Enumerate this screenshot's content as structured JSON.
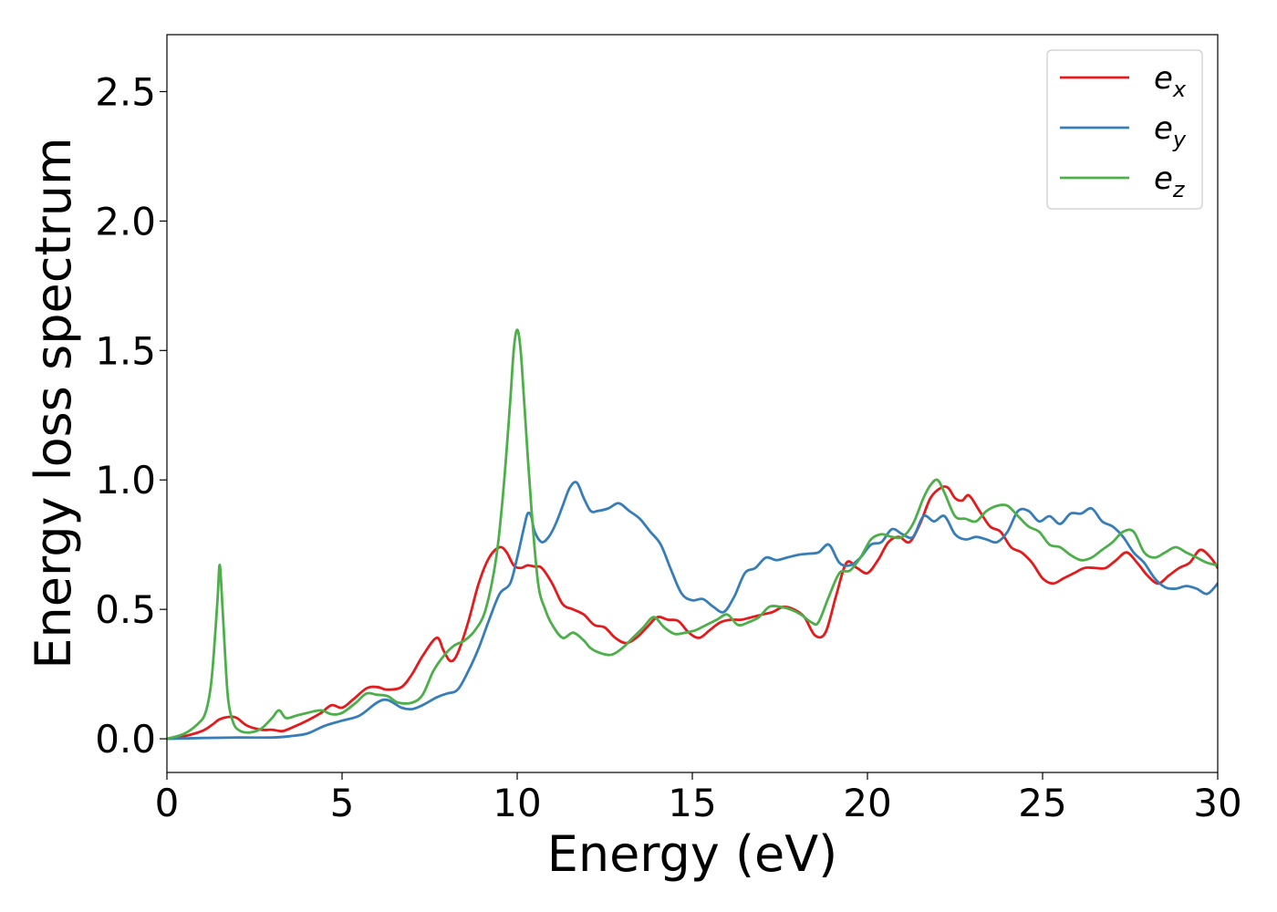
{
  "chart_data": {
    "type": "line",
    "xlabel": "Energy (eV)",
    "ylabel": "Energy loss spectrum",
    "xlim": [
      0,
      30
    ],
    "ylim": [
      -0.13,
      2.72
    ],
    "xticks": [
      0,
      5,
      10,
      15,
      20,
      25,
      30
    ],
    "xtick_labels": [
      "0",
      "5",
      "10",
      "15",
      "20",
      "25",
      "30"
    ],
    "yticks": [
      0.0,
      0.5,
      1.0,
      1.5,
      2.0,
      2.5
    ],
    "ytick_labels": [
      "0.0",
      "0.5",
      "1.0",
      "1.5",
      "2.0",
      "2.5"
    ],
    "grid": false,
    "legend_position": "top-right",
    "series": [
      {
        "name": "e_x",
        "label_base": "e",
        "label_sub": "x",
        "color": "#e41a1c",
        "x": [
          0,
          0.5,
          1,
          1.3,
          1.5,
          1.8,
          2,
          2.3,
          2.7,
          3,
          3.3,
          3.6,
          4,
          4.4,
          4.7,
          5,
          5.3,
          5.7,
          6,
          6.3,
          6.7,
          7,
          7.3,
          7.7,
          7.9,
          8.1,
          8.3,
          8.6,
          8.9,
          9.2,
          9.5,
          9.7,
          9.9,
          10.1,
          10.3,
          10.5,
          10.7,
          11,
          11.3,
          11.6,
          11.9,
          12.2,
          12.5,
          12.8,
          13.1,
          13.4,
          13.7,
          14,
          14.3,
          14.6,
          14.9,
          15.2,
          15.5,
          15.8,
          16.1,
          16.4,
          16.7,
          17,
          17.3,
          17.6,
          17.9,
          18.2,
          18.5,
          18.8,
          19.1,
          19.4,
          19.7,
          20,
          20.3,
          20.6,
          20.9,
          21.2,
          21.5,
          21.8,
          22.1,
          22.3,
          22.5,
          22.7,
          22.9,
          23.2,
          23.5,
          23.8,
          24.1,
          24.4,
          24.7,
          25,
          25.3,
          25.6,
          25.9,
          26.2,
          26.5,
          26.8,
          27.1,
          27.4,
          27.7,
          28,
          28.3,
          28.6,
          28.9,
          29.2,
          29.5,
          29.8,
          30
        ],
        "y": [
          0.0,
          0.01,
          0.03,
          0.055,
          0.075,
          0.085,
          0.08,
          0.05,
          0.035,
          0.035,
          0.03,
          0.045,
          0.07,
          0.1,
          0.13,
          0.12,
          0.15,
          0.195,
          0.2,
          0.19,
          0.2,
          0.25,
          0.32,
          0.39,
          0.34,
          0.3,
          0.33,
          0.45,
          0.6,
          0.7,
          0.74,
          0.72,
          0.67,
          0.66,
          0.67,
          0.665,
          0.66,
          0.6,
          0.52,
          0.5,
          0.48,
          0.44,
          0.43,
          0.39,
          0.37,
          0.39,
          0.43,
          0.47,
          0.46,
          0.455,
          0.41,
          0.39,
          0.42,
          0.45,
          0.46,
          0.46,
          0.47,
          0.48,
          0.49,
          0.51,
          0.5,
          0.47,
          0.4,
          0.41,
          0.55,
          0.68,
          0.66,
          0.64,
          0.69,
          0.76,
          0.78,
          0.76,
          0.83,
          0.93,
          0.97,
          0.97,
          0.93,
          0.92,
          0.94,
          0.88,
          0.82,
          0.8,
          0.74,
          0.72,
          0.68,
          0.62,
          0.6,
          0.62,
          0.64,
          0.66,
          0.66,
          0.66,
          0.69,
          0.72,
          0.68,
          0.63,
          0.6,
          0.63,
          0.66,
          0.68,
          0.73,
          0.7,
          0.66
        ]
      },
      {
        "name": "e_y",
        "label_base": "e",
        "label_sub": "y",
        "color": "#377eb8",
        "x": [
          0,
          1,
          2,
          3,
          3.5,
          4,
          4.5,
          5,
          5.5,
          6,
          6.3,
          6.7,
          7,
          7.3,
          7.7,
          8,
          8.3,
          8.6,
          8.9,
          9.2,
          9.5,
          9.8,
          10,
          10.2,
          10.3,
          10.4,
          10.5,
          10.7,
          10.9,
          11.1,
          11.3,
          11.5,
          11.7,
          11.9,
          12.1,
          12.3,
          12.6,
          12.9,
          13.2,
          13.5,
          13.8,
          14.1,
          14.4,
          14.7,
          15,
          15.3,
          15.6,
          15.9,
          16.2,
          16.5,
          16.8,
          17.1,
          17.4,
          17.7,
          18,
          18.3,
          18.6,
          18.9,
          19.2,
          19.5,
          19.8,
          20.1,
          20.4,
          20.7,
          21,
          21.3,
          21.6,
          21.9,
          22.2,
          22.5,
          22.8,
          23.1,
          23.4,
          23.7,
          24,
          24.3,
          24.6,
          24.9,
          25.2,
          25.5,
          25.8,
          26.1,
          26.4,
          26.7,
          27,
          27.3,
          27.6,
          27.9,
          28.2,
          28.5,
          28.8,
          29.1,
          29.4,
          29.7,
          30
        ],
        "y": [
          0.0,
          0.003,
          0.005,
          0.005,
          0.01,
          0.02,
          0.05,
          0.07,
          0.09,
          0.14,
          0.15,
          0.12,
          0.115,
          0.13,
          0.16,
          0.175,
          0.19,
          0.26,
          0.35,
          0.46,
          0.56,
          0.6,
          0.7,
          0.82,
          0.87,
          0.86,
          0.8,
          0.76,
          0.78,
          0.83,
          0.9,
          0.97,
          0.99,
          0.93,
          0.88,
          0.88,
          0.89,
          0.91,
          0.88,
          0.85,
          0.8,
          0.75,
          0.65,
          0.56,
          0.535,
          0.54,
          0.51,
          0.49,
          0.55,
          0.64,
          0.66,
          0.7,
          0.69,
          0.7,
          0.71,
          0.715,
          0.72,
          0.75,
          0.68,
          0.67,
          0.7,
          0.75,
          0.76,
          0.81,
          0.79,
          0.78,
          0.86,
          0.84,
          0.86,
          0.79,
          0.77,
          0.78,
          0.77,
          0.76,
          0.8,
          0.88,
          0.88,
          0.84,
          0.86,
          0.83,
          0.87,
          0.87,
          0.89,
          0.84,
          0.82,
          0.78,
          0.72,
          0.68,
          0.62,
          0.585,
          0.58,
          0.59,
          0.58,
          0.56,
          0.6
        ]
      },
      {
        "name": "e_z",
        "label_base": "e",
        "label_sub": "z",
        "color": "#4daf4a",
        "x": [
          0,
          0.5,
          0.9,
          1.1,
          1.25,
          1.35,
          1.45,
          1.5,
          1.55,
          1.65,
          1.75,
          1.9,
          2.1,
          2.4,
          2.7,
          3,
          3.2,
          3.4,
          3.7,
          4,
          4.4,
          4.7,
          5,
          5.4,
          5.7,
          6,
          6.3,
          6.6,
          7,
          7.3,
          7.6,
          7.9,
          8.2,
          8.5,
          8.8,
          9.1,
          9.4,
          9.6,
          9.8,
          9.9,
          10,
          10.1,
          10.2,
          10.4,
          10.6,
          10.8,
          11,
          11.3,
          11.6,
          11.9,
          12.1,
          12.4,
          12.7,
          13,
          13.3,
          13.6,
          13.9,
          14.2,
          14.5,
          14.8,
          15.1,
          15.4,
          15.7,
          16,
          16.3,
          16.6,
          16.9,
          17.2,
          17.5,
          17.8,
          18.1,
          18.4,
          18.6,
          18.9,
          19.2,
          19.5,
          19.8,
          20.1,
          20.4,
          20.7,
          21,
          21.3,
          21.6,
          21.8,
          22,
          22.2,
          22.5,
          22.8,
          23.1,
          23.4,
          23.7,
          24,
          24.3,
          24.6,
          24.9,
          25.2,
          25.5,
          25.8,
          26.1,
          26.4,
          26.7,
          27,
          27.3,
          27.6,
          27.9,
          28.2,
          28.5,
          28.8,
          29.1,
          29.4,
          29.7,
          30
        ],
        "y": [
          0.0,
          0.02,
          0.06,
          0.1,
          0.2,
          0.35,
          0.55,
          0.67,
          0.6,
          0.35,
          0.15,
          0.06,
          0.03,
          0.025,
          0.04,
          0.08,
          0.11,
          0.08,
          0.09,
          0.1,
          0.11,
          0.095,
          0.1,
          0.14,
          0.175,
          0.17,
          0.165,
          0.14,
          0.14,
          0.17,
          0.26,
          0.32,
          0.36,
          0.38,
          0.42,
          0.5,
          0.7,
          0.95,
          1.3,
          1.5,
          1.58,
          1.5,
          1.3,
          0.9,
          0.6,
          0.5,
          0.44,
          0.39,
          0.41,
          0.38,
          0.35,
          0.33,
          0.325,
          0.35,
          0.39,
          0.43,
          0.47,
          0.43,
          0.405,
          0.41,
          0.42,
          0.44,
          0.46,
          0.48,
          0.44,
          0.45,
          0.47,
          0.51,
          0.51,
          0.5,
          0.48,
          0.45,
          0.45,
          0.55,
          0.64,
          0.65,
          0.7,
          0.77,
          0.79,
          0.78,
          0.78,
          0.83,
          0.93,
          0.98,
          1.0,
          0.95,
          0.86,
          0.85,
          0.84,
          0.88,
          0.9,
          0.9,
          0.86,
          0.82,
          0.8,
          0.75,
          0.74,
          0.71,
          0.69,
          0.7,
          0.73,
          0.76,
          0.8,
          0.8,
          0.72,
          0.7,
          0.72,
          0.74,
          0.72,
          0.7,
          0.68,
          0.67
        ]
      }
    ]
  }
}
